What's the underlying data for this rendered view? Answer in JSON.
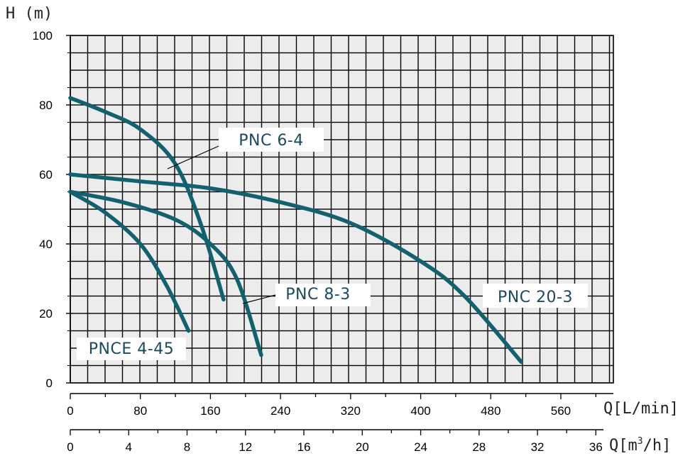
{
  "chart_data": {
    "type": "line",
    "ylabel": "H (m)",
    "xlabel": "Q[L/min]",
    "xlabel_secondary": "Q[m³/h]",
    "ylim": [
      0,
      100
    ],
    "xlim": [
      0,
      620
    ],
    "y_ticks": [
      "0",
      "20",
      "40",
      "60",
      "80",
      "100"
    ],
    "x_ticks": [
      "0",
      "80",
      "160",
      "240",
      "320",
      "400",
      "480",
      "560"
    ],
    "x_ticks_secondary": [
      "0",
      "4",
      "8",
      "12",
      "16",
      "20",
      "24",
      "28",
      "32",
      "36"
    ],
    "grid": true,
    "line_color": "#13606f",
    "series": [
      {
        "name": "PNC 6-4",
        "x": [
          0,
          40,
          80,
          120,
          150,
          175
        ],
        "y": [
          82,
          78,
          73,
          63,
          45,
          24
        ]
      },
      {
        "name": "PNC 20-3",
        "x": [
          0,
          80,
          160,
          240,
          320,
          400,
          450,
          515
        ],
        "y": [
          60,
          58,
          56,
          52,
          46,
          35,
          25,
          6
        ]
      },
      {
        "name": "PNC 8-3",
        "x": [
          0,
          60,
          120,
          160,
          190,
          218
        ],
        "y": [
          55,
          52,
          47,
          40,
          30,
          8
        ]
      },
      {
        "name": "PNCE 4-45",
        "x": [
          0,
          40,
          80,
          110,
          135
        ],
        "y": [
          55,
          49,
          40,
          28,
          15
        ]
      }
    ]
  }
}
